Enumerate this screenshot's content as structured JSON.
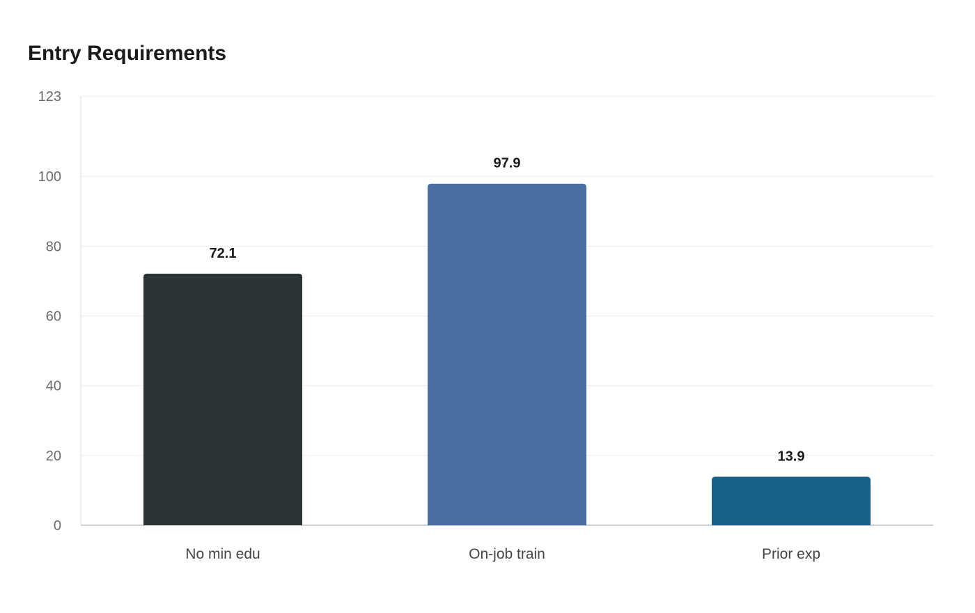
{
  "chart_data": {
    "type": "bar",
    "title": "Entry Requirements",
    "xlabel": "",
    "ylabel": "",
    "categories": [
      "No min edu",
      "On-job train",
      "Prior exp"
    ],
    "values": [
      72.1,
      97.9,
      13.9
    ],
    "value_labels": [
      "72.1",
      "97.9",
      "13.9"
    ],
    "bar_colors": [
      "#2d3436",
      "#4a6da2",
      "#176189"
    ],
    "ylim": [
      0,
      123
    ],
    "yticks": [
      0,
      20,
      40,
      60,
      80,
      100,
      123
    ],
    "grid": true,
    "legend": "none"
  }
}
